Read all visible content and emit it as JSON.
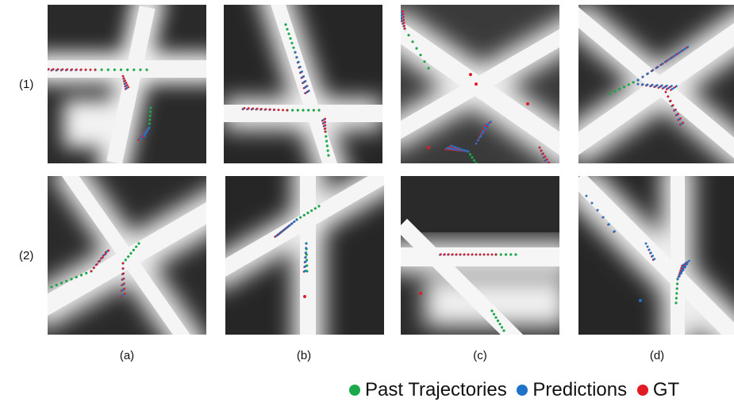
{
  "row_labels": [
    "(1)",
    "(2)"
  ],
  "col_labels": [
    "(a)",
    "(b)",
    "(c)",
    "(d)"
  ],
  "legend": [
    {
      "label": "Past Trajectories",
      "color": "#1aa84a"
    },
    {
      "label": "Predictions",
      "color": "#1e73c8"
    },
    {
      "label": "GT",
      "color": "#e01b24"
    }
  ],
  "colors": {
    "past": "#1aa84a",
    "pred": "#1e73c8",
    "gt": "#e01b24",
    "road": "#f7f7f7",
    "building": "#202020"
  }
}
